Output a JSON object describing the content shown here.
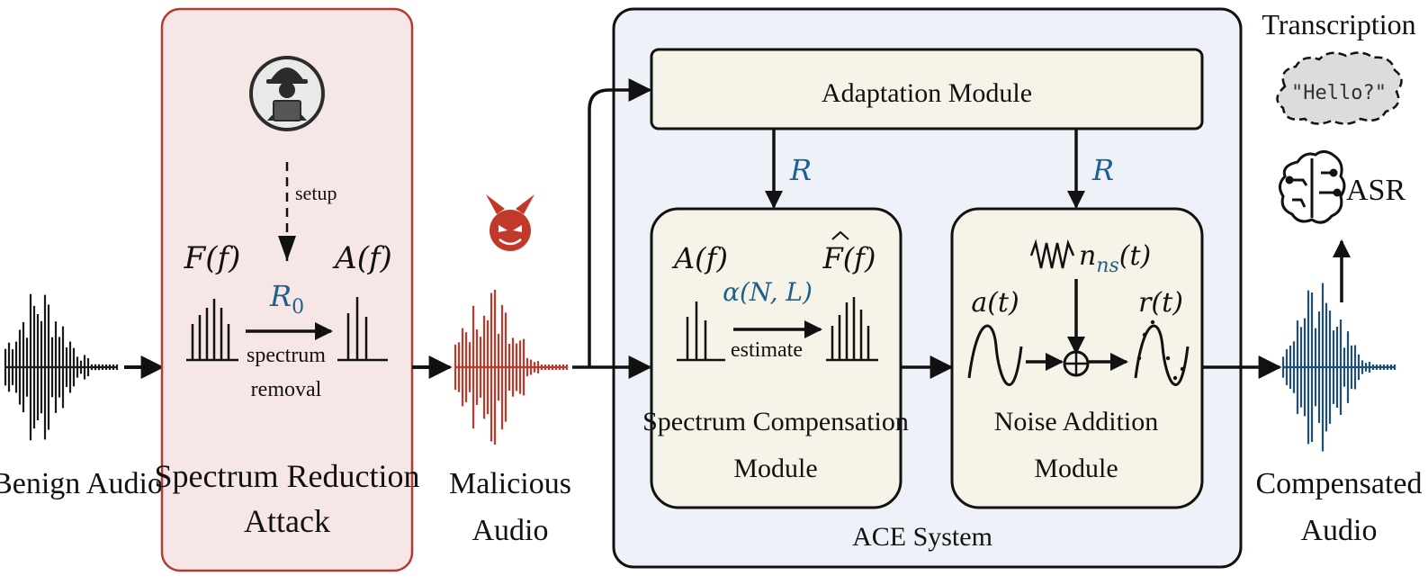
{
  "labels": {
    "benign_audio": "Benign Audio",
    "attack_title_line1": "Spectrum Reduction",
    "attack_title_line2": "Attack",
    "setup": "setup",
    "spectrum_removal_line1": "spectrum",
    "spectrum_removal_line2": "removal",
    "malicious_line1": "Malicious",
    "malicious_line2": "Audio",
    "adaptation_module": "Adaptation Module",
    "ace_system": "ACE System",
    "scm_line1": "Spectrum Compensation",
    "scm_line2": "Module",
    "estimate": "estimate",
    "nam_line1": "Noise Addition",
    "nam_line2": "Module",
    "compensated_line1": "Compensated",
    "compensated_line2": "Audio",
    "transcription": "Transcription",
    "hello": "\"Hello?\"",
    "asr": "ASR"
  },
  "math": {
    "F_f": "F(f)",
    "A_f": "A(f)",
    "R0_main": "R",
    "R0_sub": "0",
    "R_left": "R",
    "R_right": "R",
    "A_f_scm": "A(f)",
    "Fhat_f": "F(f)",
    "alpha": "α(N, L)",
    "n_ns_main": "n",
    "n_ns_sub": "ns",
    "n_ns_tail": "(t)",
    "a_t": "a(t)",
    "r_t": "r(t)"
  },
  "colors": {
    "attack_fill": "#f6e6e6",
    "attack_border": "#b43a32",
    "ace_fill": "#eef2f8",
    "module_fill": "#f6f3e8",
    "benign_wave": "#1a1a1a",
    "malicious_wave": "#c0392b",
    "compensated_wave": "#1f4e79",
    "math_blue": "#1f5f8b"
  },
  "icons": [
    "hacker-icon",
    "devil-icon",
    "brain-circuit-icon",
    "cloud-icon"
  ]
}
